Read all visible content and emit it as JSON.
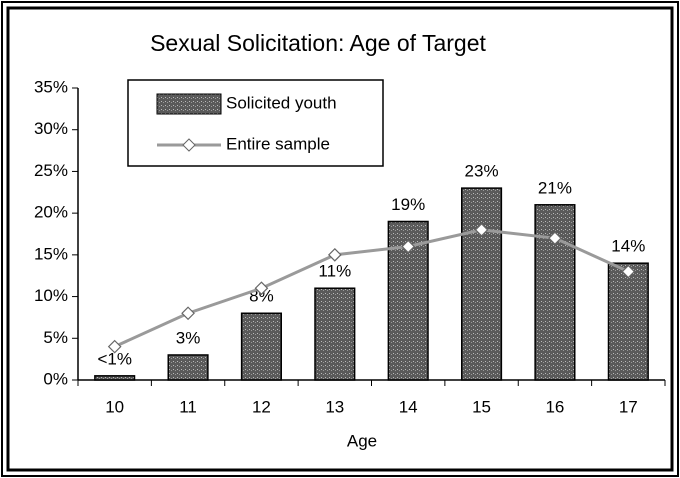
{
  "chart_data": {
    "type": "bar",
    "title": "Sexual Solicitation: Age of Target",
    "x_label": "Age",
    "categories": [
      "10",
      "11",
      "12",
      "13",
      "14",
      "15",
      "16",
      "17"
    ],
    "series": [
      {
        "name": "Solicited youth",
        "type": "bar",
        "color": "#5a5a5a",
        "values": [
          0.5,
          3,
          8,
          11,
          19,
          23,
          21,
          14
        ],
        "value_labels": [
          "<1%",
          "3%",
          "8%",
          "11%",
          "19%",
          "23%",
          "21%",
          "14%"
        ]
      },
      {
        "name": "Entire sample",
        "type": "line",
        "color": "#9a9a9a",
        "values": [
          4,
          8,
          11,
          15,
          16,
          18,
          17,
          13
        ]
      }
    ],
    "ylim": [
      0,
      35
    ],
    "yticks": [
      {
        "value": 0,
        "label": "0%"
      },
      {
        "value": 5,
        "label": "5%"
      },
      {
        "value": 10,
        "label": "10%"
      },
      {
        "value": 15,
        "label": "15%"
      },
      {
        "value": 20,
        "label": "20%"
      },
      {
        "value": 25,
        "label": "25%"
      },
      {
        "value": 30,
        "label": "30%"
      },
      {
        "value": 35,
        "label": "35%"
      }
    ]
  }
}
